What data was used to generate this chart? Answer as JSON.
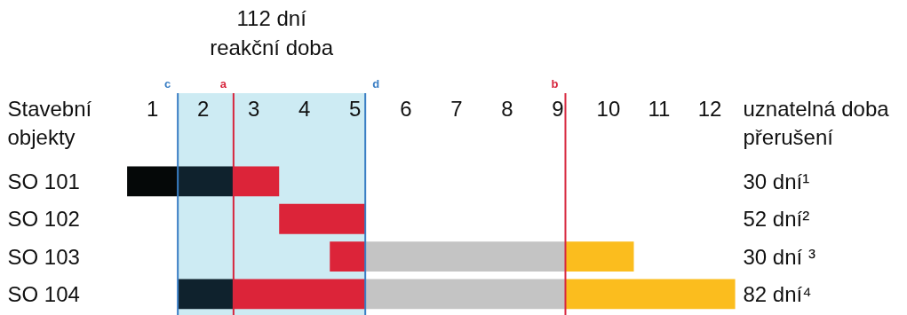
{
  "chart_data": {
    "type": "bar",
    "orientation": "horizontal",
    "ylabel": "Stavební\nobjekty",
    "categories": [
      "SO 101",
      "SO 102",
      "SO 103",
      "SO 104"
    ],
    "series": [
      {
        "color": "#050808",
        "values": [
          1,
          null,
          null,
          null
        ],
        "base": [
          0,
          null,
          null,
          null
        ]
      },
      {
        "color": "#0f222d",
        "values": [
          1.1,
          null,
          null,
          1.1
        ],
        "base": [
          1,
          null,
          null,
          1
        ]
      },
      {
        "color": "#dc2439",
        "values": [
          0.9,
          1.7,
          0.7,
          2.6
        ],
        "base": [
          2.1,
          3,
          4,
          2.1
        ]
      },
      {
        "color": "#c4c4c4",
        "values": [
          null,
          null,
          3.95,
          3.95
        ],
        "base": [
          null,
          null,
          4.7,
          4.7
        ]
      },
      {
        "color": "#fbbd1e",
        "values": [
          null,
          null,
          1.35,
          3.35
        ],
        "base": [
          null,
          null,
          8.65,
          8.65
        ]
      }
    ],
    "xlim": [
      -2.5,
      15.4
    ],
    "xticks": [
      {
        "value": 0.5,
        "label": "1"
      },
      {
        "value": 1.5,
        "label": "2"
      },
      {
        "value": 2.5,
        "label": "3"
      },
      {
        "value": 3.5,
        "label": "4"
      },
      {
        "value": 4.5,
        "label": "5"
      },
      {
        "value": 5.5,
        "label": "6"
      },
      {
        "value": 6.5,
        "label": "7"
      },
      {
        "value": 7.5,
        "label": "8"
      },
      {
        "value": 8.5,
        "label": "9"
      },
      {
        "value": 9.5,
        "label": "10"
      },
      {
        "value": 10.5,
        "label": "11"
      },
      {
        "value": 11.5,
        "label": "12"
      }
    ],
    "bands": [
      {
        "axis": "x",
        "from": 1,
        "to": 4.7,
        "label": "112 dní\nreakční doba",
        "color": "#cdebf3"
      }
    ],
    "ref_lines": [
      {
        "axis": "x",
        "value": 1,
        "label": "c",
        "color": "#3a7ec4"
      },
      {
        "axis": "x",
        "value": 2.1,
        "label": "a",
        "color": "#d7263d"
      },
      {
        "axis": "x",
        "value": 4.7,
        "label": "d",
        "color": "#3a7ec4"
      },
      {
        "axis": "x",
        "value": 8.65,
        "label": "b",
        "color": "#d7263d"
      }
    ],
    "annotations": [
      "uznatelná doba\npřerušení",
      "30 dní¹",
      "52 dní²",
      "30 dní ³",
      "82 dní⁴"
    ],
    "grid": false
  }
}
